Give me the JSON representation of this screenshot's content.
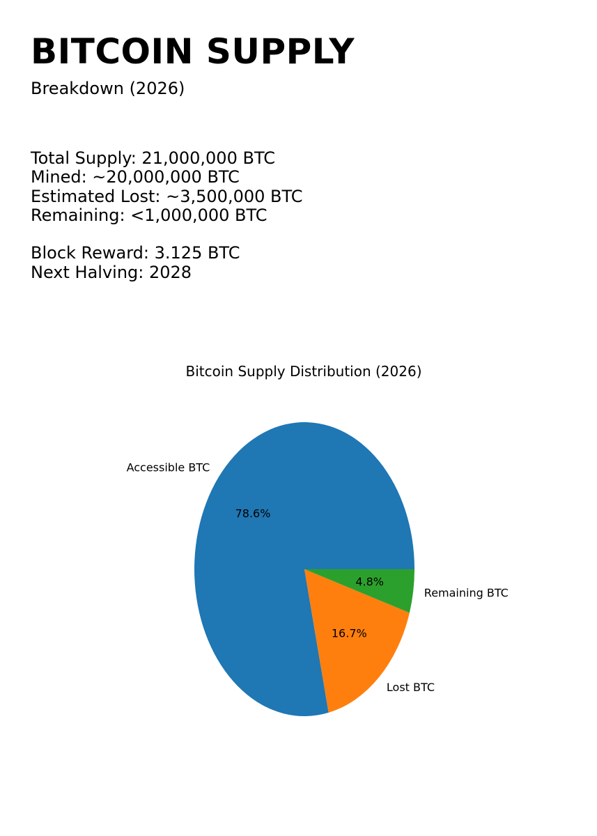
{
  "header": {
    "title": "BITCOIN SUPPLY",
    "subtitle": "Breakdown (2026)"
  },
  "stats": {
    "total_supply": "Total Supply: 21,000,000 BTC",
    "mined": "Mined: ~20,000,000 BTC",
    "estimated_lost": "Estimated Lost: ~3,500,000 BTC",
    "remaining": "Remaining: <1,000,000 BTC",
    "block_reward": "Block Reward: 3.125 BTC",
    "next_halving": "Next Halving: 2028"
  },
  "chart_data": {
    "type": "pie",
    "title": "Bitcoin Supply Distribution (2026)",
    "slices": [
      {
        "label": "Accessible BTC",
        "value": 78.6,
        "pct_label": "78.6%",
        "color": "#1f77b4"
      },
      {
        "label": "Lost BTC",
        "value": 16.7,
        "pct_label": "16.7%",
        "color": "#ff7f0e"
      },
      {
        "label": "Remaining BTC",
        "value": 4.8,
        "pct_label": "4.8%",
        "color": "#2ca02c"
      }
    ],
    "start_angle": "0 degrees, counterclockwise",
    "legend": "none"
  }
}
